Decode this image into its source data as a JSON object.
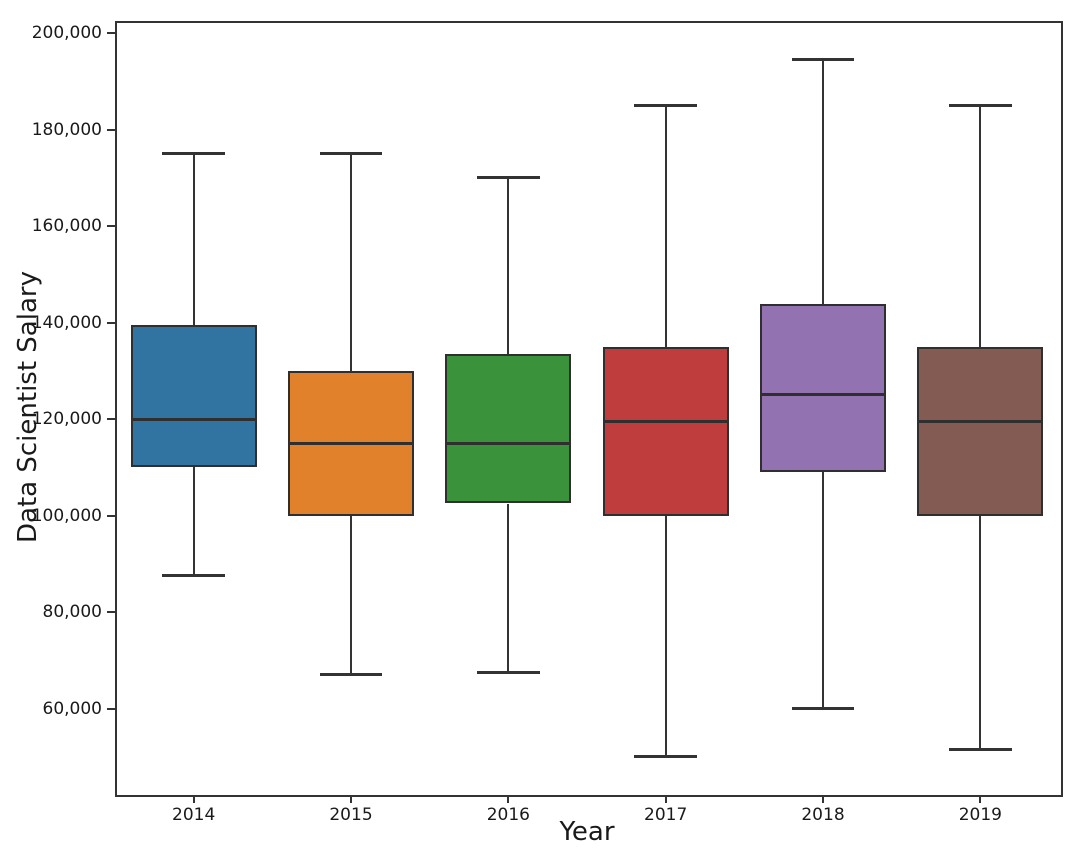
{
  "chart_data": {
    "type": "boxplot",
    "title": "",
    "xlabel": "Year",
    "ylabel": "Data Scientist Salary",
    "categories": [
      "2014",
      "2015",
      "2016",
      "2017",
      "2018",
      "2019"
    ],
    "ylim": [
      42500,
      202500
    ],
    "grid": false,
    "legend": "none",
    "background_color": "#ffffff",
    "edge_color": "#333333",
    "y_ticks": [
      {
        "value": 60000,
        "label": "60,000"
      },
      {
        "value": 80000,
        "label": "80,000"
      },
      {
        "value": 100000,
        "label": "100,000"
      },
      {
        "value": 120000,
        "label": "120,000"
      },
      {
        "value": 140000,
        "label": "140,000"
      },
      {
        "value": 160000,
        "label": "160,000"
      },
      {
        "value": 180000,
        "label": "180,000"
      },
      {
        "value": 200000,
        "label": "200,000"
      }
    ],
    "series": [
      {
        "category": "2014",
        "whisker_low": 87500,
        "q1": 110000,
        "median": 120000,
        "q3": 139500,
        "whisker_high": 175000,
        "color": "#3274a1"
      },
      {
        "category": "2015",
        "whisker_low": 67000,
        "q1": 100000,
        "median": 115000,
        "q3": 130000,
        "whisker_high": 175000,
        "color": "#e1812c"
      },
      {
        "category": "2016",
        "whisker_low": 67500,
        "q1": 102500,
        "median": 115000,
        "q3": 133500,
        "whisker_high": 170000,
        "color": "#3a923a"
      },
      {
        "category": "2017",
        "whisker_low": 50000,
        "q1": 100000,
        "median": 119500,
        "q3": 135000,
        "whisker_high": 185000,
        "color": "#c03d3e"
      },
      {
        "category": "2018",
        "whisker_low": 60000,
        "q1": 109000,
        "median": 125000,
        "q3": 143800,
        "whisker_high": 194500,
        "color": "#9372b2"
      },
      {
        "category": "2019",
        "whisker_low": 51500,
        "q1": 100000,
        "median": 119500,
        "q3": 135000,
        "whisker_high": 185000,
        "color": "#845b53"
      }
    ]
  }
}
